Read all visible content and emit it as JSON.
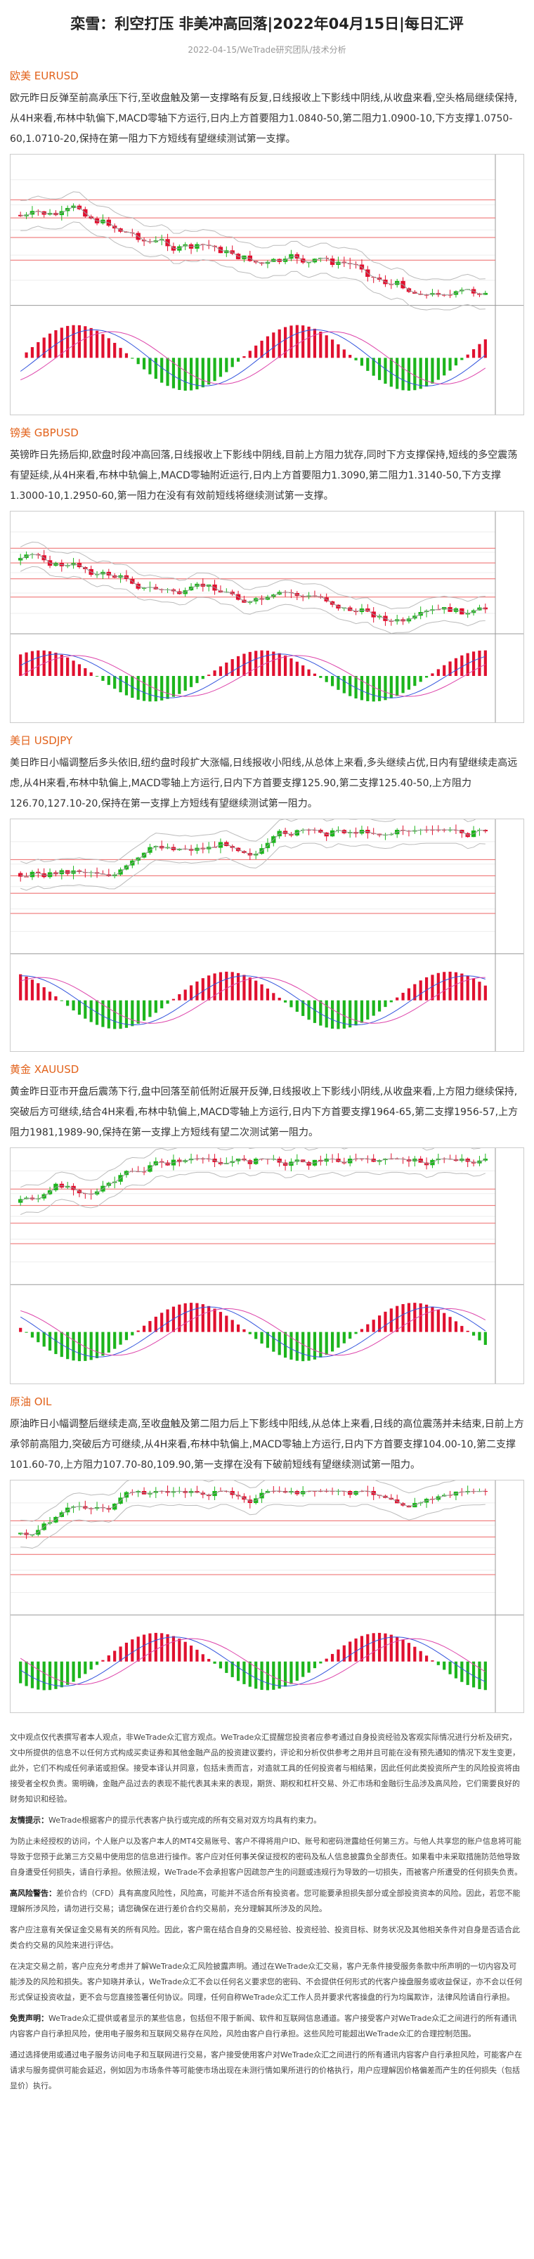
{
  "header": {
    "title": "栾雪：利空打压 非美冲高回落|2022年04月15日|每日汇评",
    "meta": "2022-04-15/WeTrade研究团队/技术分析"
  },
  "sections": [
    {
      "heading": "欧美 EURUSD",
      "text": "欧元昨日反弹至前高承压下行,至收盘触及第一支撑略有反复,日线报收上下影线中阴线,从收盘来看,空头格局继续保持,从4H来看,布林中轨偏下,MACD零轴下方运行,日内上方首要阻力1.0840-50,第二阻力1.0900-10,下方支撑1.0750-60,1.0710-20,保持在第一阻力下方短线有望继续测试第一支撑。"
    },
    {
      "heading": "镑美 GBPUSD",
      "text": "英镑昨日先扬后抑,欧盘时段冲高回落,日线报收上下影线中阴线,目前上方阻力犹存,同时下方支撑保持,短线的多空震荡有望延续,从4H来看,布林中轨偏上,MACD零轴附近运行,日内上方首要阻力1.3090,第二阻力1.3140-50,下方支撑1.3000-10,1.2950-60,第一阻力在没有有效前短线将继续测试第一支撑。"
    },
    {
      "heading": "美日 USDJPY",
      "text": "美日昨日小幅调整后多头依旧,纽约盘时段扩大涨幅,日线报收小阳线,从总体上来看,多头继续占优,日内有望继续走高远虑,从4H来看,布林中轨偏上,MACD零轴上方运行,日内下方首要支撑125.90,第二支撑125.40-50,上方阻力126.70,127.10-20,保持在第一支撑上方短线有望继续测试第一阻力。"
    },
    {
      "heading": "黄金 XAUUSD",
      "text": "黄金昨日亚市开盘后震荡下行,盘中回落至前低附近展开反弹,日线报收上下影线小阴线,从收盘来看,上方阻力继续保持,突破后方可继续,结合4H来看,布林中轨偏上,MACD零轴上方运行,日内下方首要支撑1964-65,第二支撑1956-57,上方阻力1981,1989-90,保持在第一支撑上方短线有望二次测试第一阻力。"
    },
    {
      "heading": "原油 OIL",
      "text": "原油昨日小幅调整后继续走高,至收盘触及第二阻力后上下影线中阳线,从总体上来看,日线的高位震荡并未结束,日前上方承邻前高阻力,突破后方可继续,从4H来看,布林中轨偏上,MACD零轴上方运行,日内下方首要支撑104.00-10,第二支撑101.60-70,上方阻力107.70-80,109.90,第一支撑在没有下破前短线有望继续测试第一阻力。"
    }
  ],
  "disclaimer": [
    {
      "text": "文中观点仅代表撰写者本人观点，非WeTrade众汇官方观点。WeTrade众汇提醒您投资者应参考通过自身投资经验及客观实际情况进行分析及研究，文中所提供的信息不以任何方式构成买卖证券和其他金融产品的投资建议要约，评论和分析仅供参考之用并且可能在没有预先通知的情况下发生变更，此外，它们不构成任何承诺或担保。接受本译认并同意，包括未责而言，对造就工具的任何投资者与相结果，因此任何此类投资所产生的风险投资将由接受者全权负责。需明确，金融产品过去的表现不能代表其未来的表现，期货、期权和杠杆交易、外汇市场和金融衍生品涉及高风险，它们需要良好的财务知识和经验。"
    },
    {
      "label": "友情提示：",
      "text": "WeTrade根据客户的提示代表客户执行或完成的所有交易对双方均具有约束力。"
    },
    {
      "text": "为防止未经授权的访问，个人账户以及客户本人的MT4交易账号、客户不得将用户ID、账号和密码泄露给任何第三方。与他人共享您的账户信息将可能导致于您预于此第三方交易中使用您的信息进行操作。客户应对任何事关保证授权的密码及私人信息披露负全部责任。如果看中未采取措施防范他导致自身遭受任何损失，请自行承担。依照法规，WeTrade不会承担客户因疏忽产生的问题或违规行为导致的一切损失，而被客户所遭受的任何损失负责。"
    },
    {
      "label": "高风险警告：",
      "text": "差价合约（CFD）具有高度风险性，风险高，可能并不适合所有投资者。您可能要承担损失部分或全部投资资本的风险。因此，若您不能理解所涉风险，请勿进行交易；请您确保在进行差价合约交易前，充分理解其所涉及的风险。"
    },
    {
      "text": "客户应注意有关保证金交易有关的所有风险。因此，客户需在结合自身的交易经验、投资经验、投资目标、财务状况及其他相关条件对自身是否适合此类合约交易的风险来进行评估。"
    },
    {
      "text": "在决定交易之前，客户应充分考虑并了解WeTrade众汇风险披露声明。通过在WeTrade众汇交易，客户无条件接受服务条款中所声明的一切内容及可能涉及的风险和损失。客户知晓并承认，WeTrade众汇不会以任何名义要求您的密码、不会提供任何形式的代客户操盘服务或收益保证，亦不会以任何形式保证投资收益，更不会与您直接签署任何协议。同理，任何自称WeTrade众汇工作人员并要求代客操盘的行为均属欺诈，法律风险请自行承担。"
    },
    {
      "label": "免责声明：",
      "text": "WeTrade众汇提供或者显示的某些信息，包括但不限于新闻、软件和互联网信息通道。客户接受客户对WeTrade众汇之间进行的所有通讯内容客户自行承担风险，使用电子服务和互联网交易存在风险，风险由客户自行承担。这些风险可能超出WeTrade众汇的合理控制范围。"
    },
    {
      "text": "通过选择使用或通过电子服务访问电子和互联网进行交易，客户接受使用客户对WeTrade众汇之间进行的所有通讯内容客户自行承担风险，可能客户在请求与服务提供可能会延迟，例如因为市场条件等可能使市场出现在未测行情如果所进行的价格执行，用户应理解因价格偏差而产生的任何损失（包括显价）执行。"
    }
  ]
}
